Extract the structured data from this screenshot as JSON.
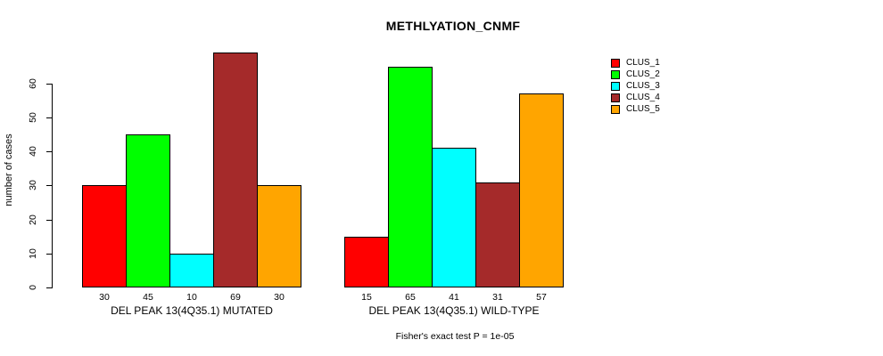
{
  "chart_data": {
    "type": "bar",
    "title": "METHLYATION_CNMF",
    "ylabel": "number of cases",
    "xlabel": "",
    "ylim": [
      0,
      60
    ],
    "yticks": [
      0,
      10,
      20,
      30,
      40,
      50,
      60
    ],
    "grid": false,
    "bar_value_labels_shown": true,
    "categories": [
      "CLUS_1",
      "CLUS_2",
      "CLUS_3",
      "CLUS_4",
      "CLUS_5"
    ],
    "colors": [
      "#FF0000",
      "#00FF00",
      "#00FFFF",
      "#A52A2A",
      "#FFA500"
    ],
    "groups": [
      {
        "label": "DEL PEAK 13(4Q35.1) MUTATED",
        "values": [
          30,
          45,
          10,
          69,
          30
        ]
      },
      {
        "label": "DEL PEAK 13(4Q35.1) WILD-TYPE",
        "values": [
          15,
          65,
          41,
          31,
          57
        ]
      }
    ],
    "legend": {
      "position": "top-right",
      "items": [
        {
          "label": "CLUS_1",
          "color": "#FF0000"
        },
        {
          "label": "CLUS_2",
          "color": "#00FF00"
        },
        {
          "label": "CLUS_3",
          "color": "#00FFFF"
        },
        {
          "label": "CLUS_4",
          "color": "#A52A2A"
        },
        {
          "label": "CLUS_5",
          "color": "#FFA500"
        }
      ]
    },
    "annotation": "Fisher's exact test P = 1e-05"
  }
}
